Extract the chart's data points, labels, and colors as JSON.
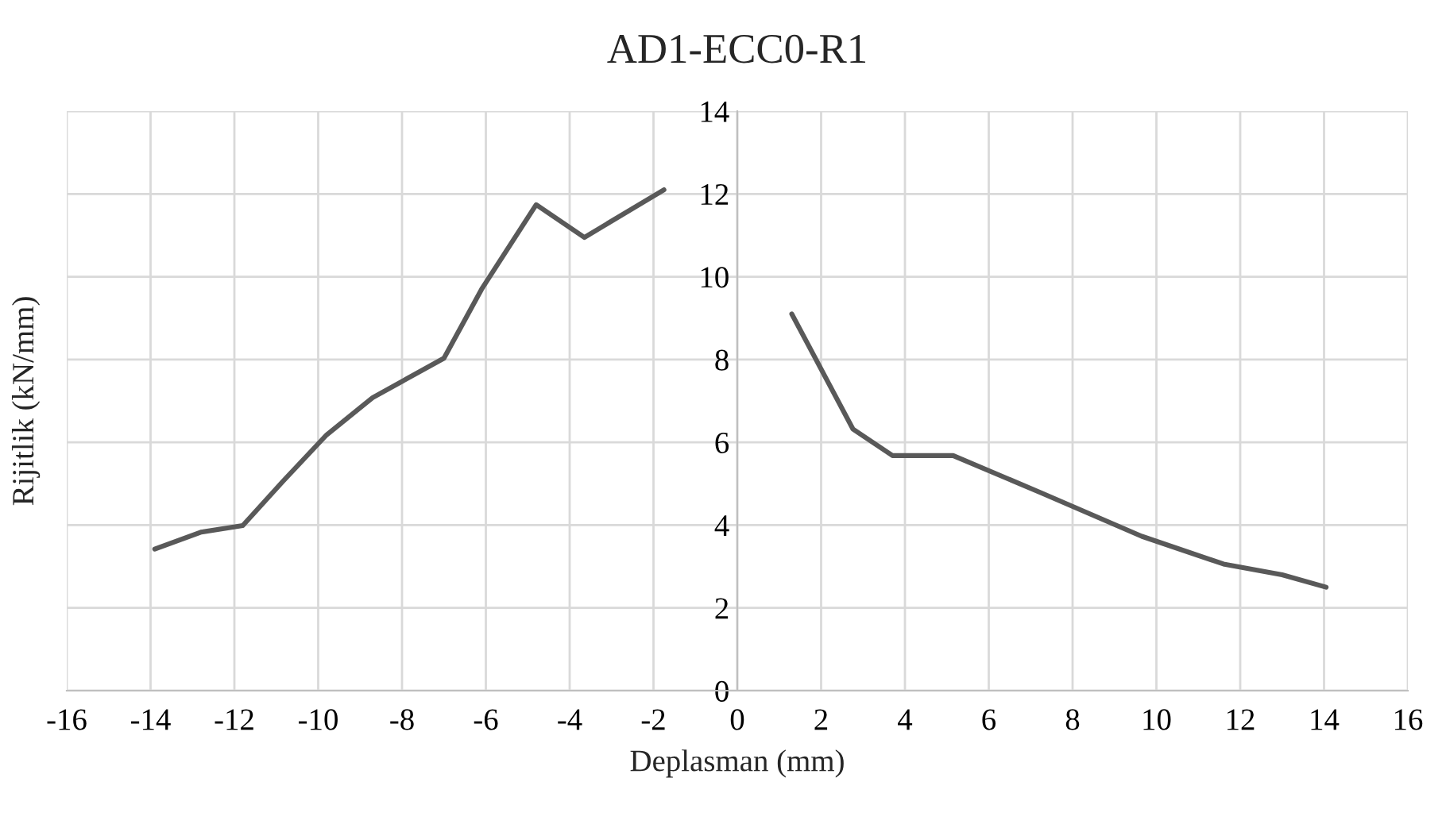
{
  "chart_data": {
    "type": "line",
    "title": "AD1-ECC0-R1",
    "xlabel": "Deplasman (mm)",
    "ylabel": "Rijitlik (kN/mm)",
    "series": [
      {
        "color": "#595959",
        "x": [
          -13.9,
          -12.8,
          -11.8,
          -10.85,
          -9.8,
          -8.7,
          -7.0,
          -6.1,
          -4.8,
          -3.65,
          -1.75
        ],
        "values": [
          3.42,
          3.83,
          3.99,
          5.05,
          6.18,
          7.08,
          8.03,
          9.7,
          11.74,
          10.95,
          12.1
        ]
      },
      {
        "color": "#595959",
        "x": [
          1.3,
          2.76,
          3.7,
          5.15,
          7.27,
          9.65,
          11.6,
          13.0,
          14.05
        ],
        "values": [
          9.1,
          6.32,
          5.68,
          5.68,
          4.77,
          3.73,
          3.06,
          2.8,
          2.5
        ]
      }
    ],
    "xlim": [
      -16,
      16
    ],
    "xticks": [
      -16,
      -14,
      -12,
      -10,
      -8,
      -6,
      -4,
      -2,
      0,
      2,
      4,
      6,
      8,
      10,
      12,
      14,
      16
    ],
    "ylim": [
      0,
      14
    ],
    "yticks": [
      0,
      2,
      4,
      6,
      8,
      10,
      12,
      14
    ],
    "grid": true,
    "marker": "none",
    "line_style": "solid"
  }
}
